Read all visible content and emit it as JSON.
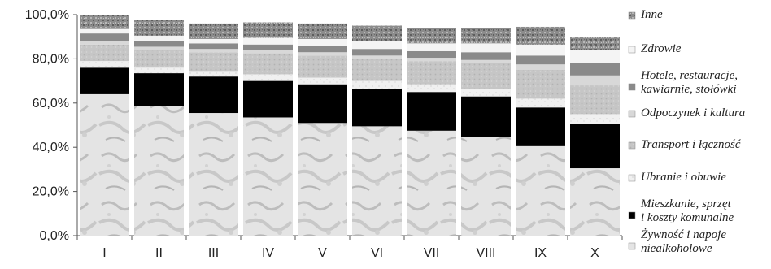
{
  "chart_data": {
    "type": "bar",
    "stacked": true,
    "categories": [
      "I",
      "II",
      "III",
      "IV",
      "V",
      "VI",
      "VII",
      "VIII",
      "IX",
      "X"
    ],
    "ylim": [
      0,
      100
    ],
    "yticks": [
      "0,0%",
      "20,0%",
      "40,0%",
      "60,0%",
      "80,0%",
      "100,0%"
    ],
    "grid": false,
    "legend_position": "right",
    "series": [
      {
        "name": "Żywność i napoje\nniealkoholowe",
        "color": "#e6e6e6",
        "texture": "marble",
        "values": [
          64,
          58.5,
          55.5,
          53.5,
          51,
          49.5,
          47.5,
          44.5,
          40.5,
          30.5
        ]
      },
      {
        "name": "Mieszkanie, sprzęt\ni koszty komunalne",
        "color": "#000000",
        "values": [
          12,
          15,
          16.5,
          16.5,
          17.5,
          17,
          17.5,
          18.5,
          17.5,
          20
        ]
      },
      {
        "name": "Ubranie i obuwie",
        "color": "#eeeeee",
        "texture": "light",
        "values": [
          3,
          2.5,
          2.5,
          3,
          3,
          3.5,
          3.5,
          3.5,
          4,
          4.5
        ]
      },
      {
        "name": "Transport i łączność",
        "color": "#c8c8c8",
        "texture": "speckle",
        "values": [
          7.5,
          8,
          8.5,
          9.5,
          10,
          10,
          10.5,
          11.5,
          13,
          13
        ]
      },
      {
        "name": "Odpoczynek i kultura",
        "color": "#d8d8d8",
        "values": [
          1.5,
          1.5,
          1.5,
          1.5,
          1.5,
          1.5,
          1.5,
          1.5,
          2.5,
          4.5
        ]
      },
      {
        "name": "Hotele, restauracje,\nkawiarnie, stołówki",
        "color": "#8a8a8a",
        "values": [
          3.5,
          2.5,
          2.5,
          2.5,
          3,
          3,
          3,
          3.5,
          4,
          5.5
        ]
      },
      {
        "name": "Zdrowie",
        "color": "#f4f4f4",
        "values": [
          2,
          2.5,
          2,
          3,
          3,
          3.5,
          3.5,
          4,
          5,
          6
        ]
      },
      {
        "name": "Inne",
        "color": "#9a9a9a",
        "texture": "granite",
        "values": [
          6.5,
          7,
          7,
          7,
          7,
          7,
          7,
          7,
          8,
          6
        ]
      }
    ]
  }
}
